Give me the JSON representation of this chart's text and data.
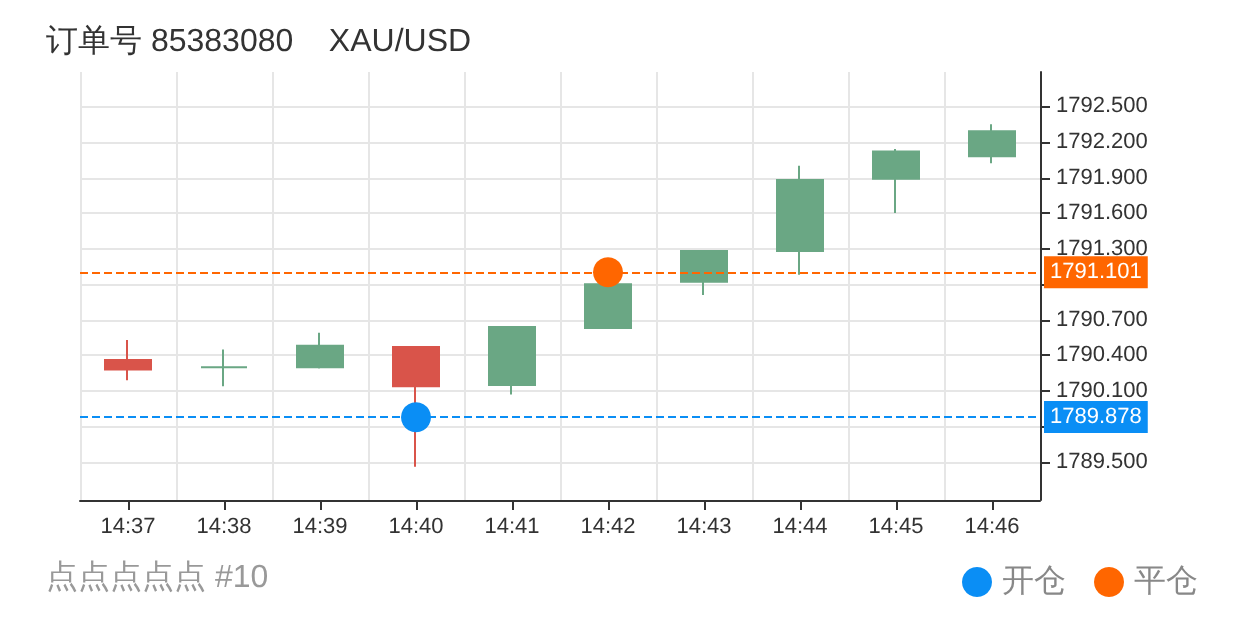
{
  "chart_data": {
    "type": "candlestick",
    "title": "订单号 85383080    XAU/USD",
    "subtitle": "点点点点点 #10",
    "categories": [
      "14:37",
      "14:38",
      "14:39",
      "14:40",
      "14:41",
      "14:42",
      "14:43",
      "14:44",
      "14:45",
      "14:46"
    ],
    "series": [
      {
        "type": "candlestick",
        "colors": [
          "#d9544a",
          "#6aa784",
          "#6aa784",
          "#d9544a",
          "#6aa784",
          "#6aa784",
          "#6aa784",
          "#6aa784",
          "#6aa784",
          "#6aa784"
        ],
        "ohlc": [
          [
            1790.36,
            1790.53,
            1790.19,
            1790.28
          ],
          [
            1790.3,
            1790.45,
            1790.14,
            1790.3
          ],
          [
            1790.3,
            1790.59,
            1790.29,
            1790.48
          ],
          [
            1790.47,
            1790.47,
            1789.46,
            1790.14
          ],
          [
            1790.15,
            1790.64,
            1790.07,
            1790.64
          ],
          [
            1790.63,
            1791.0,
            1790.63,
            1791.0
          ],
          [
            1791.02,
            1791.28,
            1790.91,
            1791.28
          ],
          [
            1791.28,
            1792.0,
            1791.08,
            1791.88
          ],
          [
            1791.89,
            1792.14,
            1791.6,
            1792.12
          ],
          [
            1792.08,
            1792.35,
            1792.02,
            1792.29
          ]
        ]
      },
      {
        "type": "scatter",
        "name": "开仓",
        "color": "#0a8ef5",
        "x": [
          "14:40"
        ],
        "values": [
          1789.878
        ]
      },
      {
        "type": "scatter",
        "name": "平仓",
        "color": "#ff6600",
        "x": [
          "14:42"
        ],
        "values": [
          1791.101
        ]
      }
    ],
    "ylim": [
      1789.18,
      1792.79
    ],
    "yticks": [
      "1789.500",
      {
        "value": 1789.8,
        "label": null
      },
      "1790.100",
      "1790.400",
      "1790.700",
      {
        "value": 1791.0,
        "label": null
      },
      "1791.300",
      "1791.600",
      "1791.900",
      "1792.200",
      "1792.500"
    ],
    "ref_lines": [
      {
        "axis": "y",
        "value": 1791.101,
        "label": "1791.101",
        "color": "#ff6600",
        "line_style": "dashed"
      },
      {
        "axis": "y",
        "value": 1789.878,
        "label": "1789.878",
        "color": "#0a8ef5",
        "line_style": "dashed"
      }
    ],
    "grid": true,
    "legend": "bottom right",
    "marker": "circle"
  }
}
